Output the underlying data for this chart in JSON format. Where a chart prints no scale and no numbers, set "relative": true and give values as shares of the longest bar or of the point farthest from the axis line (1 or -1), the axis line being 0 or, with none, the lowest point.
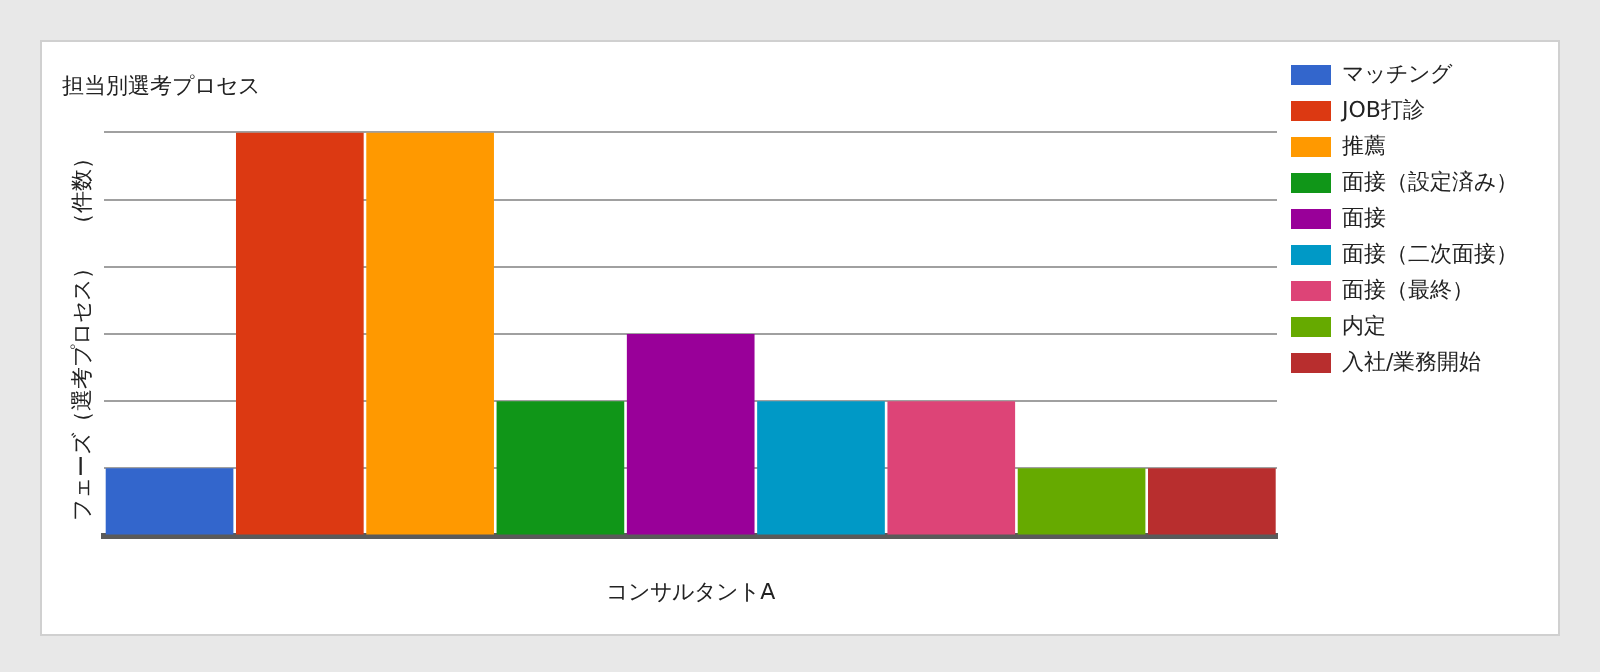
{
  "chart_data": {
    "type": "bar",
    "relative": true,
    "stacked": true,
    "title": "担当別選考プロセス",
    "ylabel": "フェーズ（選考プロセス）　（件数）",
    "xlabel": "コンサルタントA",
    "categories": [
      null,
      null,
      null,
      null,
      null,
      null,
      null,
      null,
      null
    ],
    "grid": "y",
    "legend": "right",
    "series": [
      {
        "name": "マッチング",
        "color": "#3366cc",
        "values": [
          0.167,
          null,
          null,
          null,
          null,
          null,
          null,
          null,
          null
        ]
      },
      {
        "name": "JOB打診",
        "color": "#dc3912",
        "values": [
          null,
          1,
          null,
          null,
          null,
          null,
          null,
          null,
          null
        ]
      },
      {
        "name": "推薦",
        "color": "#ff9900",
        "values": [
          null,
          null,
          1,
          null,
          null,
          null,
          null,
          null,
          null
        ]
      },
      {
        "name": "面接（設定済み）",
        "color": "#109618",
        "values": [
          null,
          null,
          null,
          0.333,
          null,
          null,
          null,
          null,
          null
        ]
      },
      {
        "name": "面接",
        "color": "#990099",
        "values": [
          null,
          null,
          null,
          null,
          0.5,
          null,
          null,
          null,
          null
        ]
      },
      {
        "name": "面接（二次面接）",
        "color": "#0099c6",
        "values": [
          null,
          null,
          null,
          null,
          null,
          0.333,
          null,
          null,
          null
        ]
      },
      {
        "name": "面接（最終）",
        "color": "#dd4477",
        "values": [
          null,
          null,
          null,
          null,
          null,
          null,
          0.333,
          null,
          null
        ]
      },
      {
        "name": "内定",
        "color": "#66aa00",
        "values": [
          null,
          null,
          null,
          null,
          null,
          null,
          null,
          0.167,
          null
        ]
      },
      {
        "name": "入社/業務開始",
        "color": "#b82e2e",
        "values": [
          null,
          null,
          null,
          null,
          null,
          null,
          null,
          null,
          0.167
        ]
      }
    ]
  }
}
